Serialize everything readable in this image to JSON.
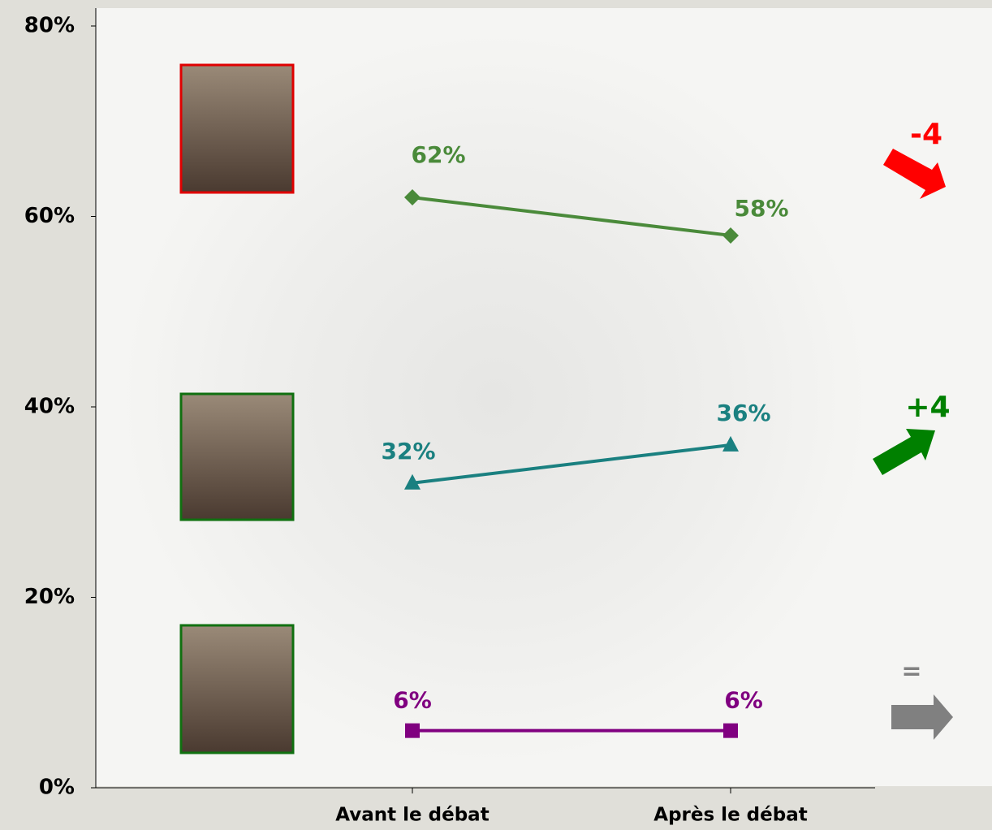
{
  "chart_data": {
    "type": "line",
    "categories": [
      "Avant le débat",
      "Après le débat"
    ],
    "series": [
      {
        "color": "#4a8a3a",
        "marker": "diamond",
        "values": [
          62,
          58
        ],
        "value_labels": [
          "62%",
          "58%"
        ]
      },
      {
        "color": "#1a8080",
        "marker": "triangle",
        "values": [
          32,
          36
        ],
        "value_labels": [
          "32%",
          "36%"
        ]
      },
      {
        "color": "#800080",
        "marker": "square",
        "values": [
          6,
          6
        ],
        "value_labels": [
          "6%",
          "6%"
        ]
      }
    ],
    "ylim": [
      0,
      80
    ],
    "yticks": [
      {
        "value": 0,
        "label": "0%"
      },
      {
        "value": 20,
        "label": "20%"
      },
      {
        "value": 40,
        "label": "40%"
      },
      {
        "value": 60,
        "label": "60%"
      },
      {
        "value": 80,
        "label": "80%"
      }
    ],
    "grid": false,
    "annotations": [
      {
        "text": "-4",
        "color": "#ff0000"
      },
      {
        "text": "+4",
        "color": "#008000"
      },
      {
        "text": "=",
        "color": "#808080"
      }
    ]
  }
}
